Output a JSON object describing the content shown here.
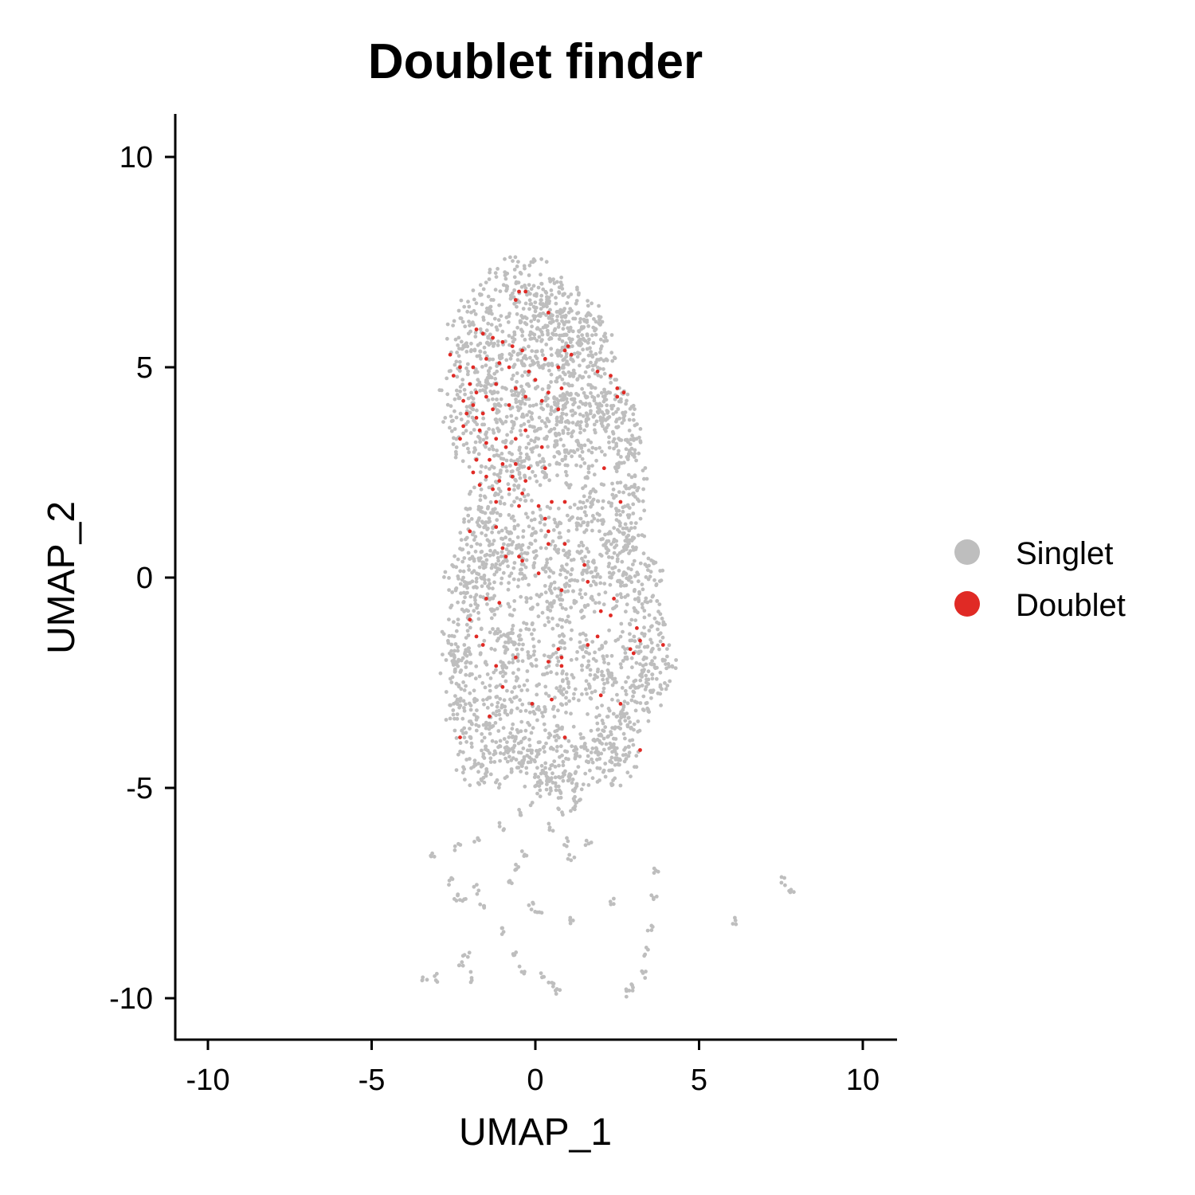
{
  "chart_data": {
    "type": "scatter",
    "title": "Doublet finder",
    "xlabel": "UMAP_1",
    "ylabel": "UMAP_2",
    "xlim": [
      -11,
      11
    ],
    "ylim": [
      -11,
      11
    ],
    "xticks": [
      -10,
      -5,
      0,
      5,
      10
    ],
    "yticks": [
      -10,
      -5,
      0,
      5,
      10
    ],
    "xtick_labels": [
      "-10",
      "-5",
      "0",
      "5",
      "10"
    ],
    "ytick_labels": [
      "-10",
      "-5",
      "0",
      "5",
      "10"
    ],
    "grid": false,
    "legend": {
      "position": "right",
      "entries": [
        "Singlet",
        "Doublet"
      ]
    },
    "colors": {
      "Singlet": "#BEBEBE",
      "Doublet": "#E02A25"
    },
    "series": [
      {
        "name": "Singlet",
        "color": "#BEBEBE",
        "note_regions": "approximate cluster shapes read from the plot",
        "points": [
          [
            -2.2,
            5.8
          ],
          [
            -1.8,
            6.3
          ],
          [
            -1.2,
            6.8
          ],
          [
            -0.6,
            7.1
          ],
          [
            0.1,
            7.0
          ],
          [
            0.8,
            6.6
          ],
          [
            1.5,
            6.1
          ],
          [
            1.9,
            5.6
          ],
          [
            2.1,
            4.8
          ],
          [
            2.0,
            4.0
          ],
          [
            1.7,
            3.3
          ],
          [
            1.2,
            2.7
          ],
          [
            -2.4,
            4.6
          ],
          [
            -2.3,
            3.8
          ],
          [
            -2.0,
            3.2
          ],
          [
            -1.4,
            2.6
          ],
          [
            -0.8,
            2.3
          ],
          [
            -0.2,
            2.5
          ],
          [
            0.5,
            2.8
          ],
          [
            1.0,
            3.4
          ],
          [
            1.4,
            4.2
          ],
          [
            1.5,
            5.1
          ],
          [
            0.9,
            5.8
          ],
          [
            0.2,
            6.2
          ],
          [
            -0.5,
            6.0
          ],
          [
            -1.0,
            5.4
          ],
          [
            -1.4,
            4.9
          ],
          [
            -0.9,
            4.2
          ],
          [
            -0.3,
            4.6
          ],
          [
            0.4,
            4.9
          ],
          [
            0.9,
            4.4
          ],
          [
            0.4,
            3.7
          ],
          [
            -0.4,
            3.4
          ],
          [
            -1.1,
            3.6
          ],
          [
            -1.6,
            4.2
          ],
          [
            -1.9,
            5.0
          ],
          [
            1.2,
            5.2
          ],
          [
            0.6,
            5.4
          ],
          [
            -0.1,
            5.5
          ],
          [
            -0.7,
            4.9
          ],
          [
            0.0,
            4.1
          ],
          [
            0.7,
            4.0
          ],
          [
            1.1,
            3.8
          ],
          [
            -1.5,
            5.7
          ],
          [
            -0.2,
            6.6
          ],
          [
            0.5,
            6.5
          ],
          [
            1.3,
            6.3
          ],
          [
            -0.6,
            2.9
          ],
          [
            2.3,
            4.1
          ],
          [
            2.7,
            3.4
          ],
          [
            2.9,
            2.5
          ],
          [
            2.7,
            1.7
          ],
          [
            2.5,
            1.1
          ],
          [
            3.0,
            1.4
          ],
          [
            2.8,
            2.9
          ],
          [
            2.6,
            3.8
          ],
          [
            -1.6,
            1.7
          ],
          [
            -1.0,
            1.5
          ],
          [
            -0.3,
            1.3
          ],
          [
            0.5,
            1.1
          ],
          [
            1.1,
            0.9
          ],
          [
            -1.8,
            1.0
          ],
          [
            -1.2,
            0.8
          ],
          [
            -0.5,
            0.6
          ],
          [
            1.6,
            1.6
          ],
          [
            1.9,
            1.9
          ],
          [
            -2.0,
            0.4
          ],
          [
            -1.4,
            0.2
          ],
          [
            -2.3,
            0.1
          ],
          [
            -1.7,
            -0.2
          ],
          [
            -0.8,
            0.3
          ],
          [
            -0.1,
            0.1
          ],
          [
            0.6,
            -0.1
          ],
          [
            1.3,
            0.2
          ],
          [
            2.0,
            0.5
          ],
          [
            2.6,
            0.7
          ],
          [
            3.1,
            0.4
          ],
          [
            3.4,
            -0.1
          ],
          [
            -2.2,
            -0.7
          ],
          [
            -1.5,
            -0.9
          ],
          [
            -0.8,
            -1.1
          ],
          [
            0.0,
            -0.8
          ],
          [
            0.8,
            -0.6
          ],
          [
            1.5,
            -0.4
          ],
          [
            2.2,
            -0.3
          ],
          [
            2.9,
            -0.6
          ],
          [
            3.5,
            -1.0
          ],
          [
            3.7,
            -1.6
          ],
          [
            -2.4,
            -1.5
          ],
          [
            -2.5,
            -1.9
          ],
          [
            -2.0,
            -2.2
          ],
          [
            -1.2,
            -1.8
          ],
          [
            -0.5,
            -2.0
          ],
          [
            0.3,
            -1.7
          ],
          [
            1.0,
            -1.5
          ],
          [
            1.8,
            -1.9
          ],
          [
            2.5,
            -1.6
          ],
          [
            3.2,
            -2.1
          ],
          [
            3.8,
            -2.2
          ],
          [
            3.5,
            -2.6
          ],
          [
            -2.2,
            -2.8
          ],
          [
            -1.6,
            -3.1
          ],
          [
            -0.9,
            -2.7
          ],
          [
            -0.2,
            -3.0
          ],
          [
            0.5,
            -2.6
          ],
          [
            1.2,
            -2.9
          ],
          [
            1.9,
            -2.5
          ],
          [
            2.6,
            -2.8
          ],
          [
            3.1,
            -3.0
          ],
          [
            -2.3,
            -3.5
          ],
          [
            -1.7,
            -3.9
          ],
          [
            -1.0,
            -3.6
          ],
          [
            -0.4,
            -4.0
          ],
          [
            0.3,
            -3.7
          ],
          [
            1.0,
            -4.1
          ],
          [
            1.7,
            -3.8
          ],
          [
            2.4,
            -3.6
          ],
          [
            2.8,
            -4.0
          ],
          [
            -1.9,
            -4.4
          ],
          [
            -1.2,
            -4.5
          ],
          [
            -0.6,
            -4.3
          ],
          [
            0.1,
            -4.5
          ],
          [
            0.8,
            -4.6
          ],
          [
            1.5,
            -4.5
          ],
          [
            2.1,
            -4.4
          ],
          [
            2.6,
            -4.5
          ],
          [
            0.2,
            -5.0
          ],
          [
            0.9,
            -5.1
          ],
          [
            1.2,
            -5.3
          ],
          [
            -0.5,
            -5.6
          ],
          [
            -1.0,
            -5.9
          ],
          [
            -1.8,
            -6.2
          ],
          [
            -2.4,
            -6.4
          ],
          [
            -3.2,
            -6.6
          ],
          [
            0.5,
            -5.9
          ],
          [
            0.9,
            -6.3
          ],
          [
            1.1,
            -6.7
          ],
          [
            1.6,
            -6.3
          ],
          [
            -0.3,
            -6.5
          ],
          [
            -0.6,
            -6.9
          ],
          [
            -0.8,
            -7.3
          ],
          [
            -2.6,
            -7.2
          ],
          [
            -1.8,
            -7.4
          ],
          [
            -1.6,
            -7.8
          ],
          [
            -2.4,
            -7.6
          ],
          [
            -0.1,
            -7.8
          ],
          [
            0.1,
            -8.0
          ],
          [
            1.1,
            -8.2
          ],
          [
            2.4,
            -7.7
          ],
          [
            3.7,
            -7.0
          ],
          [
            3.6,
            -7.6
          ],
          [
            3.5,
            -8.3
          ],
          [
            3.4,
            -8.9
          ],
          [
            3.3,
            -9.4
          ],
          [
            3.0,
            -9.7
          ],
          [
            2.8,
            -9.9
          ],
          [
            6.1,
            -8.2
          ],
          [
            7.6,
            -7.2
          ],
          [
            7.8,
            -7.5
          ],
          [
            -1.0,
            -8.4
          ],
          [
            -0.6,
            -9.0
          ],
          [
            -0.4,
            -9.3
          ],
          [
            0.2,
            -9.4
          ],
          [
            0.5,
            -9.6
          ],
          [
            0.7,
            -9.8
          ],
          [
            -2.1,
            -9.0
          ],
          [
            -2.3,
            -9.2
          ],
          [
            -2.0,
            -9.5
          ],
          [
            -3.0,
            -9.5
          ],
          [
            -3.4,
            -9.6
          ],
          [
            -2.2,
            -7.7
          ]
        ]
      },
      {
        "name": "Doublet",
        "color": "#E02A25",
        "points": [
          [
            -0.5,
            6.8
          ],
          [
            -0.3,
            6.8
          ],
          [
            -0.6,
            6.6
          ],
          [
            0.4,
            6.3
          ],
          [
            -1.8,
            5.9
          ],
          [
            -1.6,
            5.8
          ],
          [
            -1.3,
            5.7
          ],
          [
            -1.0,
            5.6
          ],
          [
            -0.7,
            5.5
          ],
          [
            -0.4,
            5.4
          ],
          [
            1.0,
            5.5
          ],
          [
            0.9,
            5.4
          ],
          [
            -2.6,
            5.3
          ],
          [
            -2.3,
            5.0
          ],
          [
            -1.9,
            5.0
          ],
          [
            -1.5,
            5.2
          ],
          [
            -1.1,
            5.1
          ],
          [
            -0.8,
            5.0
          ],
          [
            -0.2,
            4.9
          ],
          [
            0.3,
            5.2
          ],
          [
            0.7,
            5.0
          ],
          [
            1.1,
            5.3
          ],
          [
            1.9,
            4.9
          ],
          [
            2.3,
            4.8
          ],
          [
            -2.5,
            4.8
          ],
          [
            -2.0,
            4.6
          ],
          [
            -1.8,
            4.4
          ],
          [
            -1.5,
            4.3
          ],
          [
            -1.2,
            4.6
          ],
          [
            -0.6,
            4.5
          ],
          [
            0.0,
            4.7
          ],
          [
            0.4,
            4.4
          ],
          [
            0.8,
            4.5
          ],
          [
            2.5,
            4.5
          ],
          [
            2.7,
            4.4
          ],
          [
            2.5,
            4.3
          ],
          [
            -2.2,
            4.2
          ],
          [
            -1.9,
            4.1
          ],
          [
            -1.6,
            3.9
          ],
          [
            -1.3,
            4.0
          ],
          [
            -0.8,
            4.1
          ],
          [
            -0.3,
            4.3
          ],
          [
            0.2,
            4.2
          ],
          [
            0.7,
            4.0
          ],
          [
            -2.1,
            3.9
          ],
          [
            -1.8,
            3.8
          ],
          [
            -2.2,
            3.6
          ],
          [
            -1.7,
            3.5
          ],
          [
            -1.2,
            3.3
          ],
          [
            -0.6,
            3.3
          ],
          [
            -0.3,
            3.5
          ],
          [
            0.2,
            3.1
          ],
          [
            -2.3,
            3.3
          ],
          [
            -1.5,
            3.2
          ],
          [
            -0.9,
            3.1
          ],
          [
            -1.8,
            2.8
          ],
          [
            -1.4,
            2.8
          ],
          [
            -1.0,
            2.7
          ],
          [
            -0.6,
            2.7
          ],
          [
            -0.2,
            2.6
          ],
          [
            0.3,
            2.6
          ],
          [
            -1.9,
            2.5
          ],
          [
            -1.5,
            2.4
          ],
          [
            -1.1,
            2.3
          ],
          [
            -0.7,
            2.4
          ],
          [
            -0.3,
            2.3
          ],
          [
            2.1,
            2.6
          ],
          [
            -1.7,
            2.2
          ],
          [
            -1.3,
            2.1
          ],
          [
            -0.8,
            2.1
          ],
          [
            -0.4,
            2.0
          ],
          [
            -1.2,
            1.8
          ],
          [
            -0.5,
            1.7
          ],
          [
            0.1,
            1.7
          ],
          [
            0.5,
            1.8
          ],
          [
            0.9,
            1.8
          ],
          [
            2.6,
            1.8
          ],
          [
            0.3,
            1.4
          ],
          [
            0.4,
            1.1
          ],
          [
            -1.2,
            1.2
          ],
          [
            -2.0,
            1.1
          ],
          [
            0.4,
            0.8
          ],
          [
            0.9,
            0.8
          ],
          [
            -1.0,
            0.7
          ],
          [
            -0.9,
            0.5
          ],
          [
            -0.5,
            0.5
          ],
          [
            -0.4,
            0.4
          ],
          [
            1.5,
            0.3
          ],
          [
            0.1,
            0.1
          ],
          [
            1.6,
            -0.1
          ],
          [
            0.8,
            -0.3
          ],
          [
            -1.5,
            -0.5
          ],
          [
            -1.1,
            -0.6
          ],
          [
            2.4,
            -0.5
          ],
          [
            2.0,
            -0.8
          ],
          [
            2.3,
            -0.9
          ],
          [
            -2.0,
            -1.0
          ],
          [
            3.1,
            -1.2
          ],
          [
            3.2,
            -1.5
          ],
          [
            1.9,
            -1.4
          ],
          [
            1.6,
            -1.6
          ],
          [
            3.9,
            -1.6
          ],
          [
            -1.8,
            -1.4
          ],
          [
            -1.6,
            -1.6
          ],
          [
            0.7,
            -1.7
          ],
          [
            2.9,
            -1.7
          ],
          [
            -0.6,
            -1.9
          ],
          [
            0.8,
            -1.9
          ],
          [
            3.0,
            -1.8
          ],
          [
            -1.2,
            -2.1
          ],
          [
            0.4,
            -2.0
          ],
          [
            0.8,
            -2.1
          ],
          [
            -1.0,
            -2.6
          ],
          [
            -0.1,
            -3.0
          ],
          [
            0.5,
            -2.9
          ],
          [
            2.0,
            -2.8
          ],
          [
            2.6,
            -3.0
          ],
          [
            -1.4,
            -3.3
          ],
          [
            -2.3,
            -3.8
          ],
          [
            0.9,
            -3.8
          ],
          [
            3.2,
            -4.1
          ]
        ]
      }
    ]
  }
}
